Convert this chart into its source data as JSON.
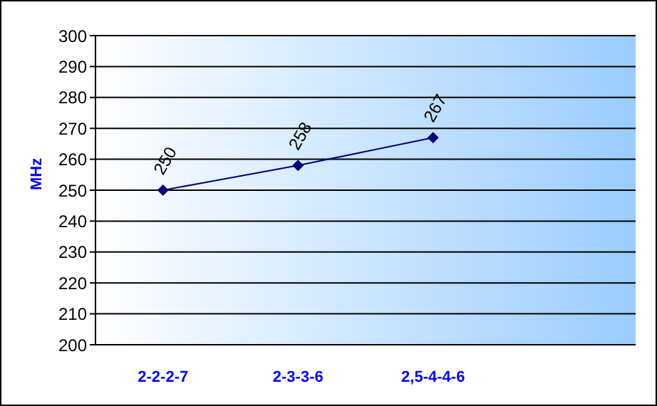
{
  "chart_data": {
    "type": "line",
    "ylabel": "MHz",
    "categories": [
      "2-2-2-7",
      "2-3-3-6",
      "2,5-4-4-6",
      null
    ],
    "series": [
      {
        "color": "#000080",
        "values": [
          250,
          258,
          267,
          null
        ]
      }
    ],
    "ylim": [
      200,
      300
    ],
    "yticks": [
      200,
      210,
      220,
      230,
      240,
      250,
      260,
      270,
      280,
      290,
      300
    ],
    "grid": "y",
    "marker": "diamond",
    "data_labels": true,
    "legend": false
  }
}
